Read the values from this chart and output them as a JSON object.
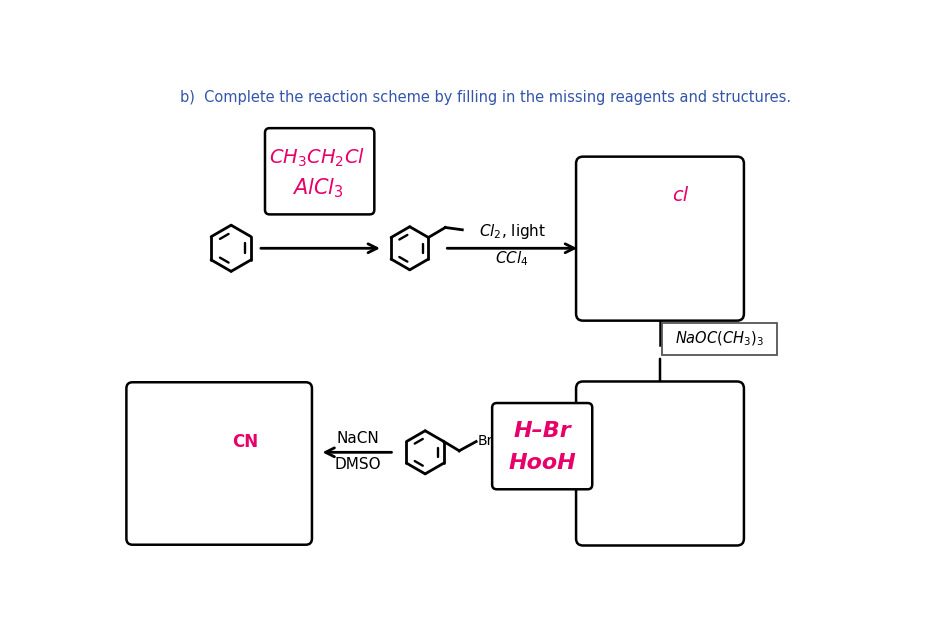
{
  "title": "b)  Complete the reaction scheme by filling in the missing reagents and structures.",
  "title_color": "#3355AA",
  "title_fontsize": 10.5,
  "bg_color": "#ffffff",
  "black": "#000000",
  "pink": "#E8006A",
  "reagent_cl2_light": "Cl₂, light",
  "reagent_ccl4": "CCl₄",
  "reagent_naocch3": "NaOC(CH₃)₃",
  "reagent_nacn": "NaCN",
  "reagent_dmso": "DMSO",
  "label_Br": "Br",
  "label_CN": "CN",
  "label_cl": "cl"
}
